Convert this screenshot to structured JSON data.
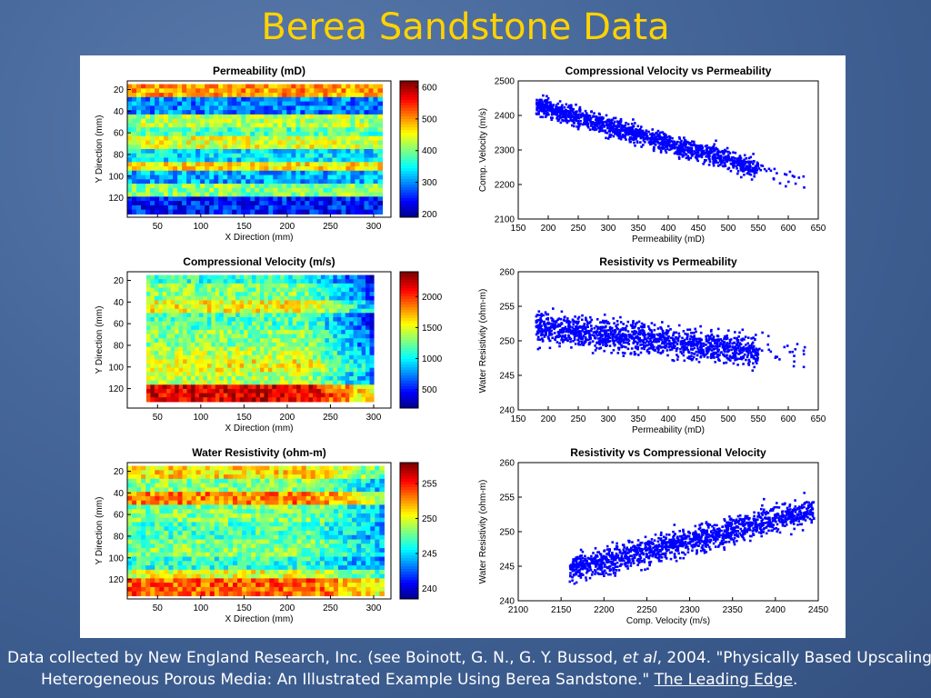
{
  "slide": {
    "title": "Berea Sandstone Data",
    "caption": {
      "part1": "Data collected by New England Research, Inc. (see Boinott, G. N., G. Y. Bussod, ",
      "etal": "et al",
      "part2": ", 2004. \"Physically Based Upscaling of Heterogeneous Porous Media: An Illustrated Example Using Berea Sandstone.\" ",
      "journal": "The Leading Edge",
      "end": "."
    }
  },
  "colors": {
    "title": "#ffd200",
    "scatter_points": "#0000ff"
  },
  "chart_data": [
    {
      "type": "heatmap",
      "title": "Permeability (mD)",
      "xlabel": "X Direction (mm)",
      "ylabel": "Y Direction (mm)",
      "xticks": [
        "50",
        "100",
        "150",
        "200",
        "250",
        "300"
      ],
      "yticks": [
        "20",
        "40",
        "60",
        "80",
        "100",
        "120"
      ],
      "xlim": [
        15,
        320
      ],
      "ylim": [
        12,
        138
      ],
      "data_xrange": [
        15,
        310
      ],
      "data_yrange": [
        15,
        135
      ],
      "colorbar": {
        "ticks": [
          "600",
          "500",
          "400",
          "300",
          "200"
        ],
        "range": [
          190,
          620
        ]
      },
      "colormap": "jet",
      "stripes_y": [
        20,
        35,
        48,
        58,
        68,
        80,
        92,
        100,
        112,
        125
      ],
      "stripes_val": [
        0.72,
        0.25,
        0.55,
        0.45,
        0.6,
        0.35,
        0.65,
        0.3,
        0.5,
        0.15
      ],
      "gradient_x": 0.0
    },
    {
      "type": "scatter",
      "title": "Compressional Velocity vs Permeability",
      "xlabel": "Permeability (mD)",
      "ylabel": "Comp. Velocity (m/s)",
      "xticks": [
        "150",
        "200",
        "250",
        "300",
        "350",
        "400",
        "450",
        "500",
        "550",
        "600",
        "650"
      ],
      "yticks": [
        "2100",
        "2200",
        "2300",
        "2400",
        "2500"
      ],
      "xlim": [
        150,
        650
      ],
      "ylim": [
        2100,
        2500
      ],
      "trend": {
        "x_from": 180,
        "x_to": 550,
        "y_from": 2430,
        "y_to": 2245,
        "spread": 35,
        "outlier_max_x": 630
      }
    },
    {
      "type": "heatmap",
      "title": "Compressional Velocity (m/s)",
      "xlabel": "X Direction (mm)",
      "ylabel": "Y Direction (mm)",
      "xticks": [
        "50",
        "100",
        "150",
        "200",
        "250",
        "300"
      ],
      "yticks": [
        "20",
        "40",
        "60",
        "80",
        "100",
        "120"
      ],
      "xlim": [
        15,
        320
      ],
      "ylim": [
        12,
        138
      ],
      "data_xrange": [
        37,
        300
      ],
      "data_yrange": [
        15,
        132
      ],
      "colorbar": {
        "ticks": [
          "2000",
          "1500",
          "1000",
          "500"
        ],
        "range": [
          200,
          2400
        ]
      },
      "colormap": "jet",
      "stripes_y": [
        18,
        30,
        45,
        58,
        72,
        88,
        100,
        110,
        122
      ],
      "stripes_val": [
        0.42,
        0.5,
        0.62,
        0.45,
        0.5,
        0.55,
        0.62,
        0.55,
        0.9
      ],
      "gradient_x": -0.35
    },
    {
      "type": "scatter",
      "title": "Resistivity vs Permeability",
      "xlabel": "Permeability (mD)",
      "ylabel": "Water Resistivity (ohm-m)",
      "xticks": [
        "150",
        "200",
        "250",
        "300",
        "350",
        "400",
        "450",
        "500",
        "550",
        "600",
        "650"
      ],
      "yticks": [
        "240",
        "245",
        "250",
        "255",
        "260"
      ],
      "xlim": [
        150,
        650
      ],
      "ylim": [
        240,
        260
      ],
      "trend": {
        "x_from": 180,
        "x_to": 550,
        "y_from": 252,
        "y_to": 248.5,
        "spread": 2.8,
        "outlier_max_x": 630
      }
    },
    {
      "type": "heatmap",
      "title": "Water Resistivity (ohm-m)",
      "xlabel": "X Direction (mm)",
      "ylabel": "Y Direction (mm)",
      "xticks": [
        "50",
        "100",
        "150",
        "200",
        "250",
        "300"
      ],
      "yticks": [
        "20",
        "40",
        "60",
        "80",
        "100",
        "120"
      ],
      "xlim": [
        15,
        320
      ],
      "ylim": [
        12,
        138
      ],
      "data_xrange": [
        15,
        312
      ],
      "data_yrange": [
        15,
        135
      ],
      "colorbar": {
        "ticks": [
          "255",
          "250",
          "245",
          "240"
        ],
        "range": [
          238.5,
          258
        ]
      },
      "colormap": "jet",
      "stripes_y": [
        20,
        30,
        45,
        60,
        75,
        90,
        105,
        115,
        125
      ],
      "stripes_val": [
        0.65,
        0.5,
        0.75,
        0.5,
        0.45,
        0.5,
        0.42,
        0.6,
        0.78
      ],
      "gradient_x": -0.2
    },
    {
      "type": "scatter",
      "title": "Resistivity vs Compressional Velocity",
      "xlabel": "Comp. Velocity (m/s)",
      "ylabel": "Water Resistivity (ohm-m)",
      "xticks": [
        "2100",
        "2150",
        "2200",
        "2250",
        "2300",
        "2350",
        "2400",
        "2450"
      ],
      "yticks": [
        "240",
        "245",
        "250",
        "255",
        "260"
      ],
      "xlim": [
        2100,
        2450
      ],
      "ylim": [
        240,
        260
      ],
      "trend": {
        "x_from": 2160,
        "x_to": 2440,
        "y_from": 244.5,
        "y_to": 253,
        "spread": 2.5,
        "outlier_max_x": 2445
      }
    }
  ]
}
